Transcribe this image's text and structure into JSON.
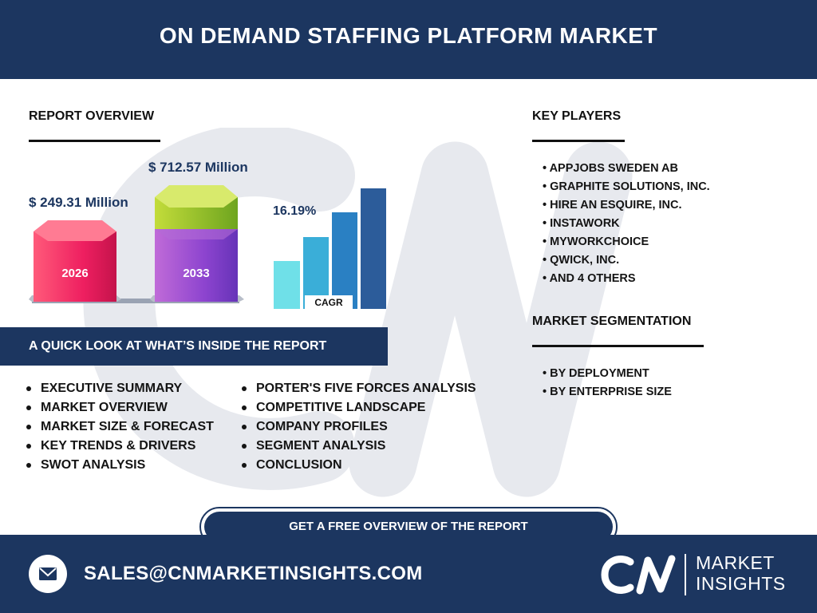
{
  "header": {
    "title": "ON DEMAND STAFFING PLATFORM MARKET"
  },
  "report_overview": {
    "title": "REPORT OVERVIEW",
    "value_2026": "$ 249.31 Million",
    "value_2033": "$ 712.57 Million",
    "year_2026": "2026",
    "year_2033": "2033",
    "cagr_value": "16.19%",
    "cagr_label": "CAGR"
  },
  "quick_look": {
    "title": "A QUICK LOOK AT WHAT’S INSIDE THE REPORT",
    "col1": [
      "EXECUTIVE SUMMARY",
      "MARKET OVERVIEW",
      "MARKET SIZE & FORECAST",
      "KEY TRENDS & DRIVERS",
      "SWOT ANALYSIS"
    ],
    "col2": [
      "PORTER'S FIVE FORCES ANALYSIS",
      "COMPETITIVE LANDSCAPE",
      "COMPANY PROFILES",
      "SEGMENT ANALYSIS",
      "CONCLUSION"
    ]
  },
  "key_players": {
    "title": "KEY PLAYERS",
    "items": [
      "• APPJOBS SWEDEN AB",
      "• GRAPHITE SOLUTIONS, INC.",
      "• HIRE AN ESQUIRE, INC.",
      "• INSTAWORK",
      "• MYWORKCHOICE",
      "• QWICK, INC.",
      "• AND 4 OTHERS"
    ]
  },
  "segmentation": {
    "title": "MARKET SEGMENTATION",
    "items": [
      "• BY DEPLOYMENT",
      "• BY ENTERPRISE SIZE"
    ]
  },
  "cta": {
    "label": "GET A FREE OVERVIEW OF THE REPORT"
  },
  "footer": {
    "email": "SALES@CNMARKETINSIGHTS.COM",
    "logo_line1": "MARKET",
    "logo_line2": "INSIGHTS",
    "mail_icon": "envelope-icon",
    "logo_icon": "cn-logo-icon"
  },
  "colors": {
    "navy": "#1c3660",
    "pink": "#ee1f60",
    "purple": "#7b3fd0",
    "lime": "#a6c92a",
    "cyan_light": "#6fe0e8",
    "blue_dark": "#2c5c9a"
  }
}
